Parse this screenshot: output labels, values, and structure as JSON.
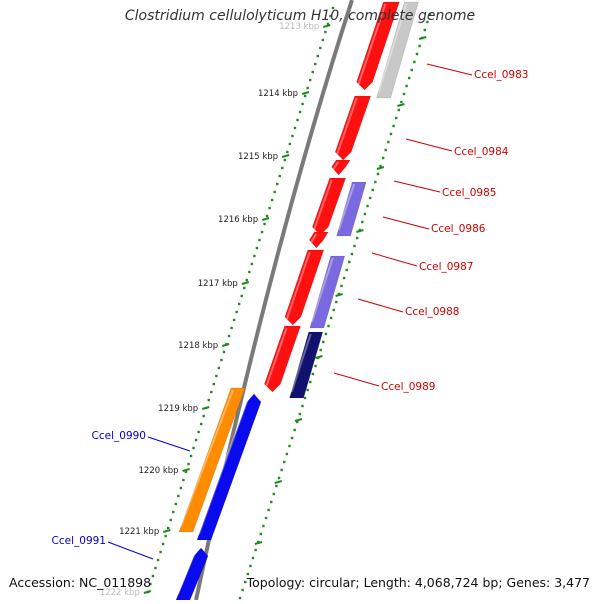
{
  "title": "Clostridium cellulolyticum H10, complete genome",
  "accession": "Accession: NC_011898",
  "summary": "Topology: circular; Length: 4,068,724 bp; Genes: 3,477",
  "colors": {
    "backbone": "#7a7a7a",
    "ticks": "#1f8a1f",
    "forward_label": "#cc0000",
    "reverse_label": "#0000cc"
  },
  "kbp_ticks": [
    "1213 kbp",
    "1214 kbp",
    "1215 kbp",
    "1216 kbp",
    "1217 kbp",
    "1218 kbp",
    "1219 kbp",
    "1220 kbp",
    "1221 kbp",
    "1222 kbp"
  ],
  "genes": [
    {
      "name": "Ccel_0983",
      "strand": "forward"
    },
    {
      "name": "Ccel_0984",
      "strand": "forward"
    },
    {
      "name": "Ccel_0985",
      "strand": "forward"
    },
    {
      "name": "Ccel_0986",
      "strand": "forward"
    },
    {
      "name": "Ccel_0987",
      "strand": "forward"
    },
    {
      "name": "Ccel_0988",
      "strand": "forward"
    },
    {
      "name": "Ccel_0989",
      "strand": "forward"
    },
    {
      "name": "Ccel_0990",
      "strand": "reverse"
    },
    {
      "name": "Ccel_0991",
      "strand": "reverse"
    }
  ]
}
